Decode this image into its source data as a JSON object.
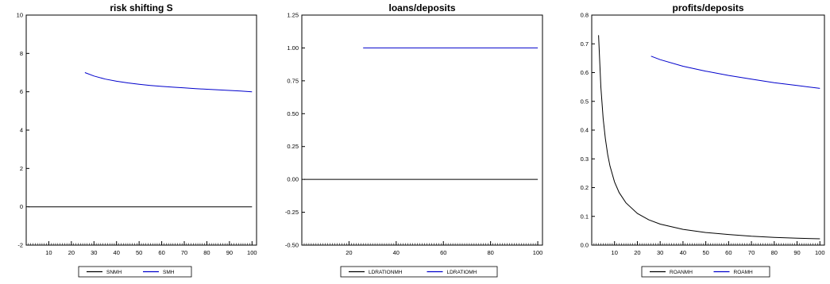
{
  "chart_data": [
    {
      "type": "line",
      "title": "risk shifting S",
      "xlim": [
        0,
        102
      ],
      "ylim": [
        -2,
        10
      ],
      "xticks": [
        10,
        20,
        30,
        40,
        50,
        60,
        70,
        80,
        90,
        100
      ],
      "xtick_labels": [
        "10",
        "20",
        "30",
        "40",
        "50",
        "60",
        "70",
        "80",
        "90",
        "100"
      ],
      "yticks": [
        -2,
        0,
        2,
        4,
        6,
        8,
        10
      ],
      "ytick_labels": [
        "-2",
        "0",
        "2",
        "4",
        "6",
        "8",
        "10"
      ],
      "grid": false,
      "legend_position": "bottom",
      "series": [
        {
          "name": "SNMH",
          "color": "#000000",
          "x": [
            1,
            100
          ],
          "y": [
            0,
            0
          ]
        },
        {
          "name": "SMH",
          "color": "#0000cc",
          "x": [
            26,
            30,
            35,
            40,
            45,
            50,
            55,
            60,
            65,
            70,
            75,
            80,
            85,
            90,
            95,
            100
          ],
          "y": [
            7.0,
            6.82,
            6.66,
            6.55,
            6.46,
            6.39,
            6.33,
            6.28,
            6.24,
            6.2,
            6.16,
            6.13,
            6.1,
            6.07,
            6.04,
            6.0
          ]
        }
      ]
    },
    {
      "type": "line",
      "title": "loans/deposits",
      "xlim": [
        0,
        102
      ],
      "ylim": [
        -0.5,
        1.25
      ],
      "xticks": [
        20,
        40,
        60,
        80,
        100
      ],
      "xtick_labels": [
        "20",
        "40",
        "60",
        "80",
        "100"
      ],
      "yticks": [
        -0.5,
        -0.25,
        0,
        0.25,
        0.5,
        0.75,
        1.0,
        1.25
      ],
      "ytick_labels": [
        "-0.50",
        "-0.25",
        "0.00",
        "0.25",
        "0.50",
        "0.75",
        "1.00",
        "1.25"
      ],
      "grid": false,
      "legend_position": "bottom",
      "series": [
        {
          "name": "LDRATIONMH",
          "color": "#000000",
          "x": [
            1,
            100
          ],
          "y": [
            0,
            0
          ]
        },
        {
          "name": "LDRATIOMH",
          "color": "#0000cc",
          "x": [
            26,
            100
          ],
          "y": [
            1.0,
            1.0
          ]
        }
      ]
    },
    {
      "type": "line",
      "title": "profits/deposits",
      "xlim": [
        0,
        102
      ],
      "ylim": [
        0,
        0.8
      ],
      "xticks": [
        10,
        20,
        30,
        40,
        50,
        60,
        70,
        80,
        90,
        100
      ],
      "xtick_labels": [
        "10",
        "20",
        "30",
        "40",
        "50",
        "60",
        "70",
        "80",
        "90",
        "100"
      ],
      "yticks": [
        0,
        0.1,
        0.2,
        0.3,
        0.4,
        0.5,
        0.6,
        0.7,
        0.8
      ],
      "ytick_labels": [
        "0.0",
        "0.1",
        "0.2",
        "0.3",
        "0.4",
        "0.5",
        "0.6",
        "0.7",
        "0.8"
      ],
      "grid": false,
      "legend_position": "bottom",
      "series": [
        {
          "name": "ROANMH",
          "color": "#000000",
          "x": [
            3,
            4,
            5,
            6,
            7,
            8,
            10,
            12,
            15,
            20,
            25,
            30,
            40,
            50,
            60,
            70,
            80,
            90,
            100
          ],
          "y": [
            0.73,
            0.55,
            0.44,
            0.37,
            0.315,
            0.275,
            0.22,
            0.183,
            0.147,
            0.11,
            0.088,
            0.073,
            0.055,
            0.044,
            0.037,
            0.031,
            0.027,
            0.024,
            0.022
          ]
        },
        {
          "name": "ROAMH",
          "color": "#0000cc",
          "x": [
            26,
            30,
            40,
            50,
            60,
            70,
            80,
            90,
            100
          ],
          "y": [
            0.657,
            0.645,
            0.622,
            0.605,
            0.59,
            0.577,
            0.565,
            0.555,
            0.545
          ]
        }
      ]
    }
  ]
}
